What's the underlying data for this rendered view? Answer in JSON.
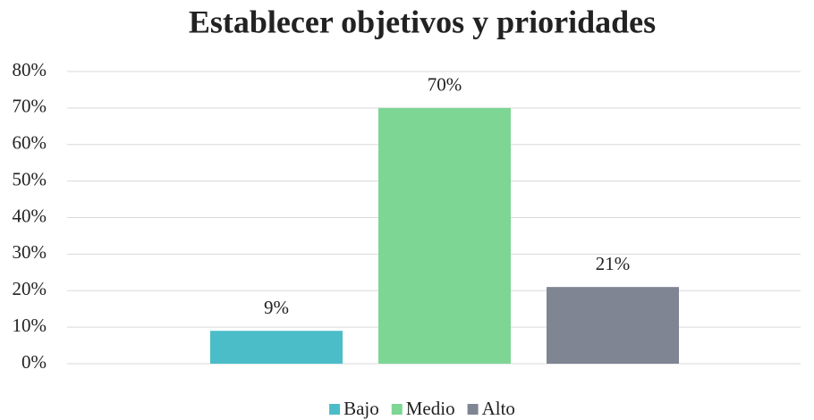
{
  "chart_data": {
    "type": "bar",
    "title": "Establecer objetivos y prioridades",
    "categories": [
      null
    ],
    "series": [
      {
        "name": "Bajo",
        "color": "#4bbdc8",
        "values": [
          9
        ],
        "value_labels": [
          "9%"
        ]
      },
      {
        "name": "Medio",
        "color": "#7dd694",
        "values": [
          70
        ],
        "value_labels": [
          "70%"
        ]
      },
      {
        "name": "Alto",
        "color": "#7f8593",
        "values": [
          21
        ],
        "value_labels": [
          "21%"
        ]
      }
    ],
    "ylim": [
      0,
      80
    ],
    "yticks": [
      {
        "value": 0,
        "label": "0%"
      },
      {
        "value": 10,
        "label": "10%"
      },
      {
        "value": 20,
        "label": "20%"
      },
      {
        "value": 30,
        "label": "30%"
      },
      {
        "value": 40,
        "label": "40%"
      },
      {
        "value": 50,
        "label": "50%"
      },
      {
        "value": 60,
        "label": "60%"
      },
      {
        "value": 70,
        "label": "70%"
      },
      {
        "value": 80,
        "label": "80%"
      }
    ],
    "grid": true,
    "legend": "bottom"
  }
}
